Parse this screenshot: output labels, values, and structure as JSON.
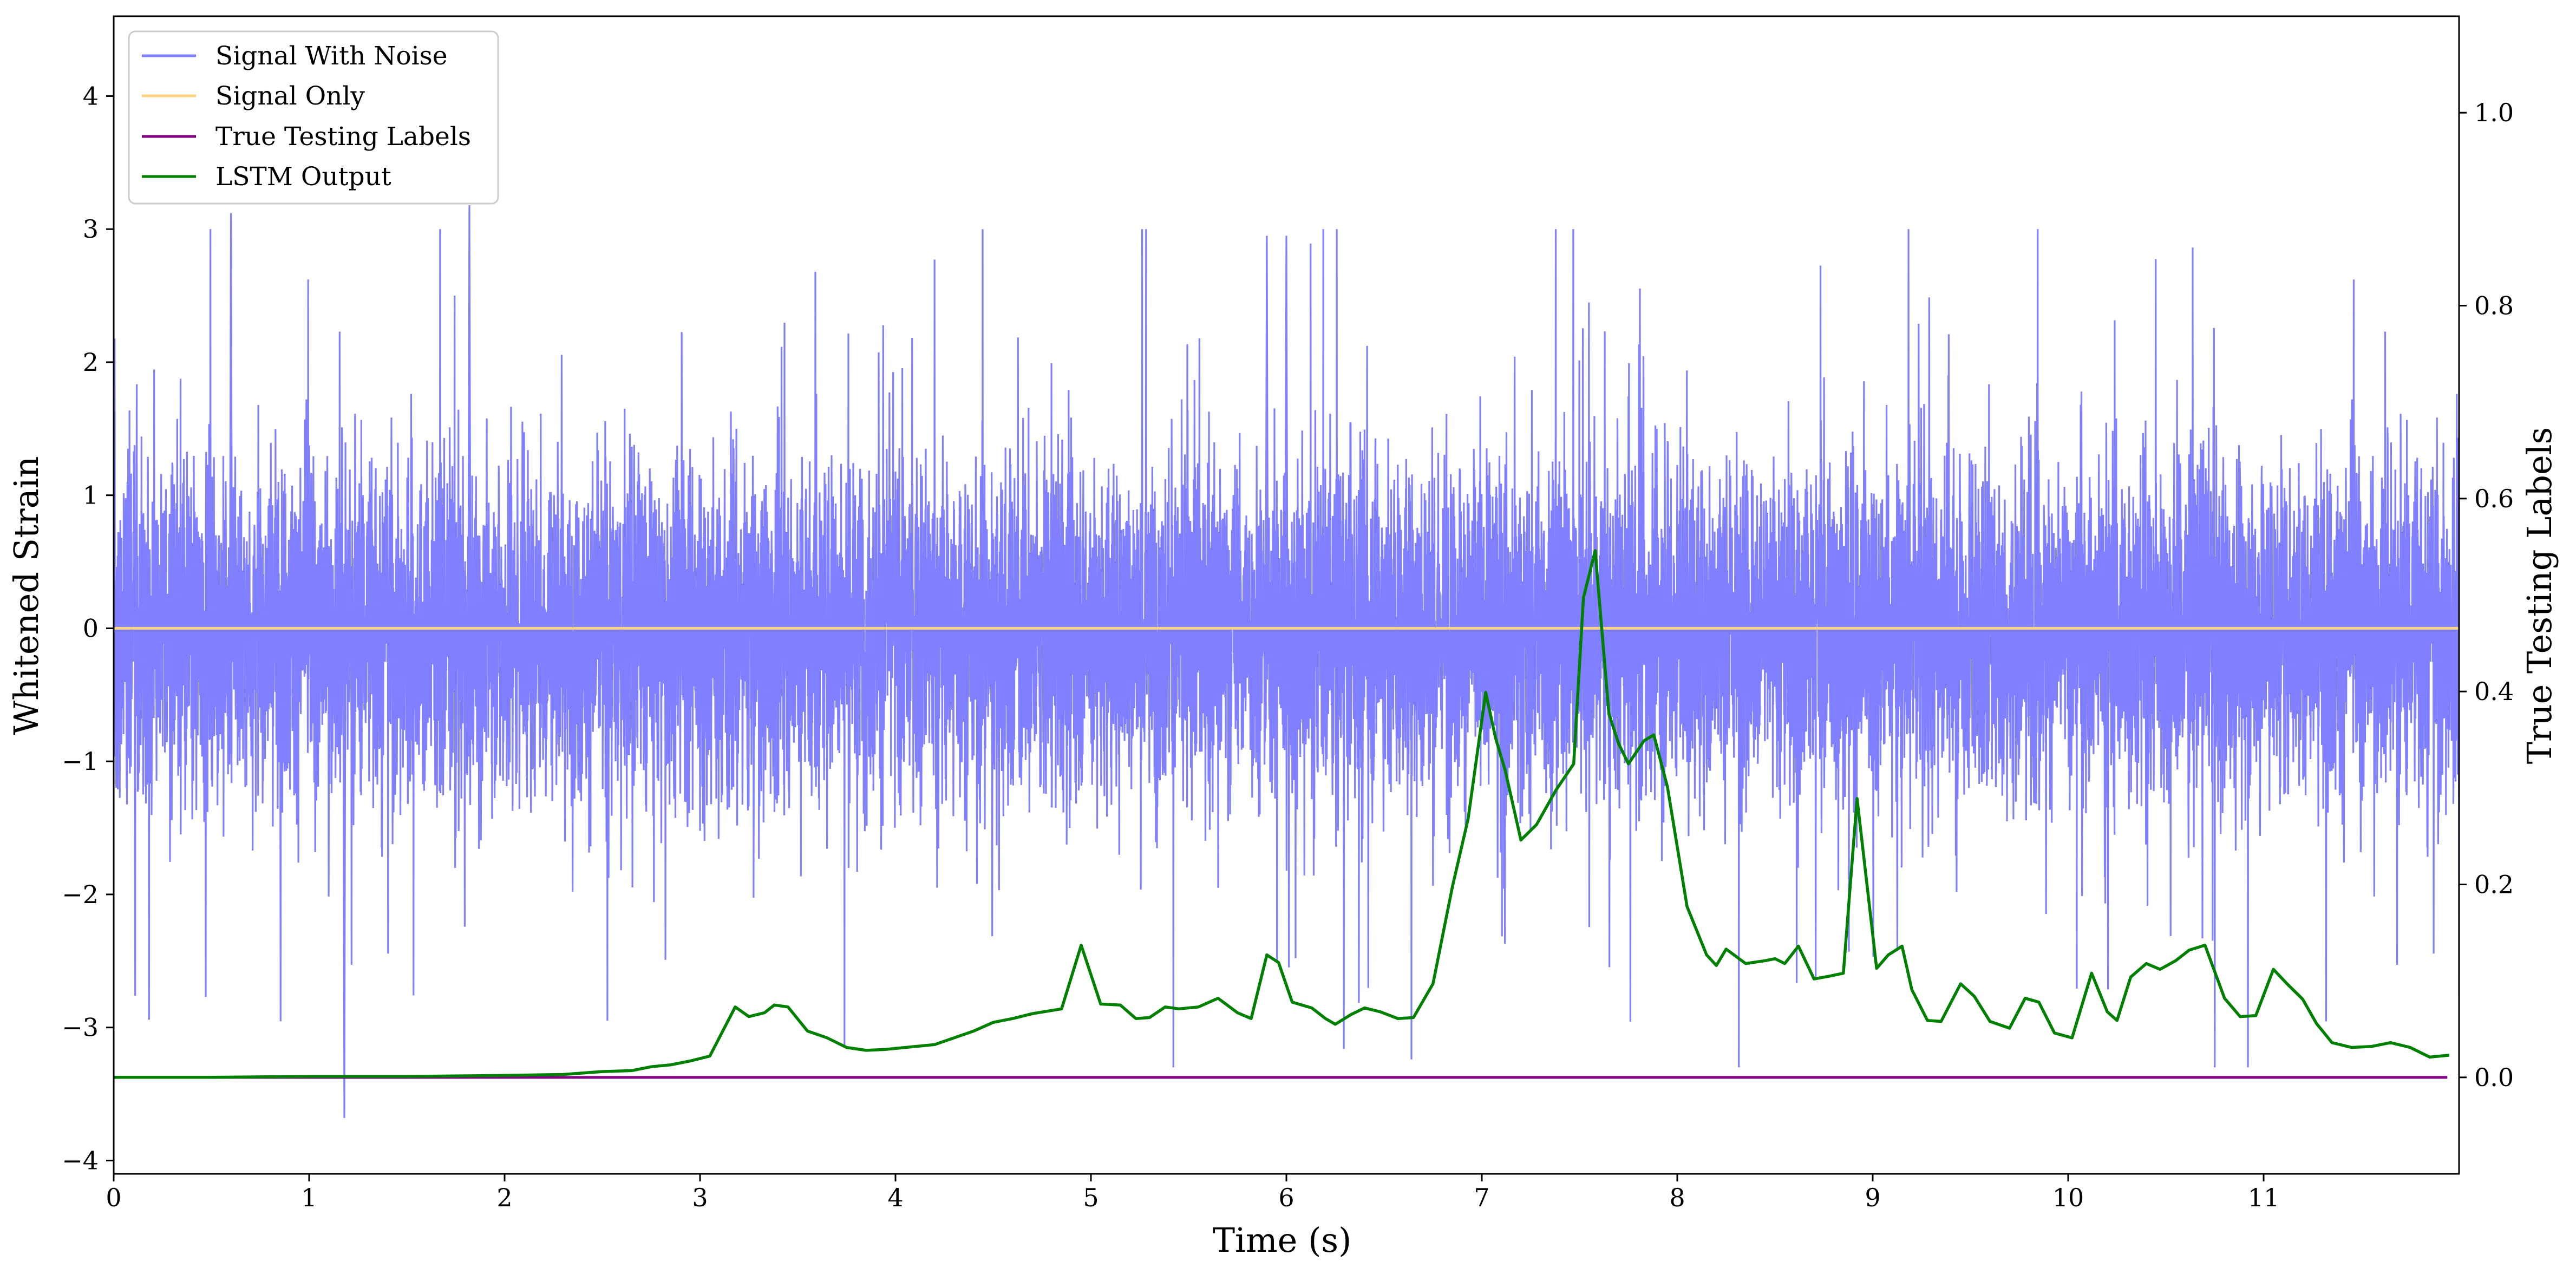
{
  "chart_data": {
    "type": "line",
    "xlabel": "Time (s)",
    "ylabel_left": "Whitened Strain",
    "ylabel_right": "True Testing Labels",
    "xlim": [
      0,
      12
    ],
    "ylim_left": [
      -4.1,
      4.6
    ],
    "ylim_right": [
      -0.1,
      1.1
    ],
    "x_ticks": [
      0,
      1,
      2,
      3,
      4,
      5,
      6,
      7,
      8,
      9,
      10,
      11
    ],
    "y_ticks_left": [
      -4,
      -3,
      -2,
      -1,
      0,
      1,
      2,
      3,
      4
    ],
    "y_ticks_right": [
      0.0,
      0.2,
      0.4,
      0.6,
      0.8,
      1.0
    ],
    "x_tick_labels": [
      "0",
      "1",
      "2",
      "3",
      "4",
      "5",
      "6",
      "7",
      "8",
      "9",
      "10",
      "11"
    ],
    "y_tick_labels_left": [
      "−4",
      "−3",
      "−2",
      "−1",
      "0",
      "1",
      "2",
      "3",
      "4"
    ],
    "y_tick_labels_right": [
      "0.0",
      "0.2",
      "0.4",
      "0.6",
      "0.8",
      "1.0"
    ],
    "grid": false,
    "legend": {
      "position": "top-left"
    },
    "series": [
      {
        "name": "Signal With Noise",
        "axis": "left",
        "color": "#7f7fff",
        "description_values": {
          "duration_s": 12,
          "typical_range": [
            -1.4,
            1.4
          ],
          "extreme_range": [
            -3.68,
            3.18
          ]
        },
        "notable_points": [
          [
            1.18,
            -3.68
          ],
          [
            1.82,
            3.18
          ],
          [
            0.6,
            3.12
          ],
          [
            5.9,
            2.95
          ],
          [
            6.0,
            2.95
          ]
        ]
      },
      {
        "name": "Signal Only",
        "axis": "left",
        "color": "#ffd27f",
        "x": [
          0,
          12
        ],
        "values": [
          0,
          0
        ]
      },
      {
        "name": "True Testing Labels",
        "axis": "right",
        "color": "#800080",
        "x": [
          0,
          12
        ],
        "values": [
          0,
          0
        ]
      },
      {
        "name": "LSTM Output",
        "axis": "right",
        "color": "#008000",
        "x": [
          0.0,
          0.5,
          1.0,
          1.5,
          2.0,
          2.3,
          2.5,
          2.65,
          2.75,
          2.85,
          2.95,
          3.05,
          3.18,
          3.25,
          3.33,
          3.38,
          3.45,
          3.55,
          3.65,
          3.75,
          3.85,
          3.95,
          4.05,
          4.2,
          4.3,
          4.4,
          4.5,
          4.6,
          4.7,
          4.85,
          4.95,
          5.05,
          5.15,
          5.23,
          5.3,
          5.38,
          5.45,
          5.55,
          5.65,
          5.75,
          5.82,
          5.9,
          5.96,
          6.03,
          6.13,
          6.2,
          6.25,
          6.33,
          6.4,
          6.48,
          6.57,
          6.65,
          6.75,
          6.85,
          6.93,
          7.02,
          7.07,
          7.12,
          7.2,
          7.28,
          7.38,
          7.47,
          7.52,
          7.58,
          7.65,
          7.7,
          7.75,
          7.83,
          7.88,
          7.95,
          8.05,
          8.15,
          8.2,
          8.25,
          8.35,
          8.45,
          8.5,
          8.55,
          8.62,
          8.7,
          8.78,
          8.85,
          8.92,
          9.02,
          9.08,
          9.15,
          9.2,
          9.28,
          9.35,
          9.45,
          9.52,
          9.6,
          9.7,
          9.78,
          9.85,
          9.93,
          10.02,
          10.12,
          10.2,
          10.25,
          10.32,
          10.4,
          10.47,
          10.55,
          10.62,
          10.7,
          10.8,
          10.88,
          10.96,
          11.05,
          11.12,
          11.2,
          11.27,
          11.35,
          11.45,
          11.55,
          11.65,
          11.75,
          11.85,
          11.95
        ],
        "values": [
          0.0,
          0.0,
          0.001,
          0.001,
          0.002,
          0.003,
          0.006,
          0.007,
          0.011,
          0.013,
          0.017,
          0.022,
          0.073,
          0.063,
          0.067,
          0.075,
          0.073,
          0.048,
          0.041,
          0.031,
          0.028,
          0.029,
          0.031,
          0.034,
          0.041,
          0.048,
          0.057,
          0.061,
          0.066,
          0.071,
          0.137,
          0.076,
          0.075,
          0.061,
          0.062,
          0.073,
          0.071,
          0.073,
          0.082,
          0.067,
          0.061,
          0.127,
          0.119,
          0.078,
          0.072,
          0.061,
          0.055,
          0.065,
          0.072,
          0.068,
          0.061,
          0.062,
          0.097,
          0.198,
          0.268,
          0.399,
          0.352,
          0.318,
          0.246,
          0.262,
          0.298,
          0.325,
          0.497,
          0.546,
          0.377,
          0.346,
          0.325,
          0.349,
          0.355,
          0.301,
          0.177,
          0.127,
          0.116,
          0.133,
          0.118,
          0.121,
          0.123,
          0.118,
          0.136,
          0.102,
          0.105,
          0.108,
          0.289,
          0.113,
          0.127,
          0.136,
          0.091,
          0.059,
          0.058,
          0.097,
          0.084,
          0.058,
          0.051,
          0.082,
          0.078,
          0.046,
          0.041,
          0.108,
          0.068,
          0.059,
          0.104,
          0.118,
          0.112,
          0.121,
          0.132,
          0.137,
          0.082,
          0.063,
          0.064,
          0.112,
          0.097,
          0.081,
          0.056,
          0.036,
          0.031,
          0.032,
          0.036,
          0.031,
          0.021,
          0.023
        ]
      }
    ]
  }
}
